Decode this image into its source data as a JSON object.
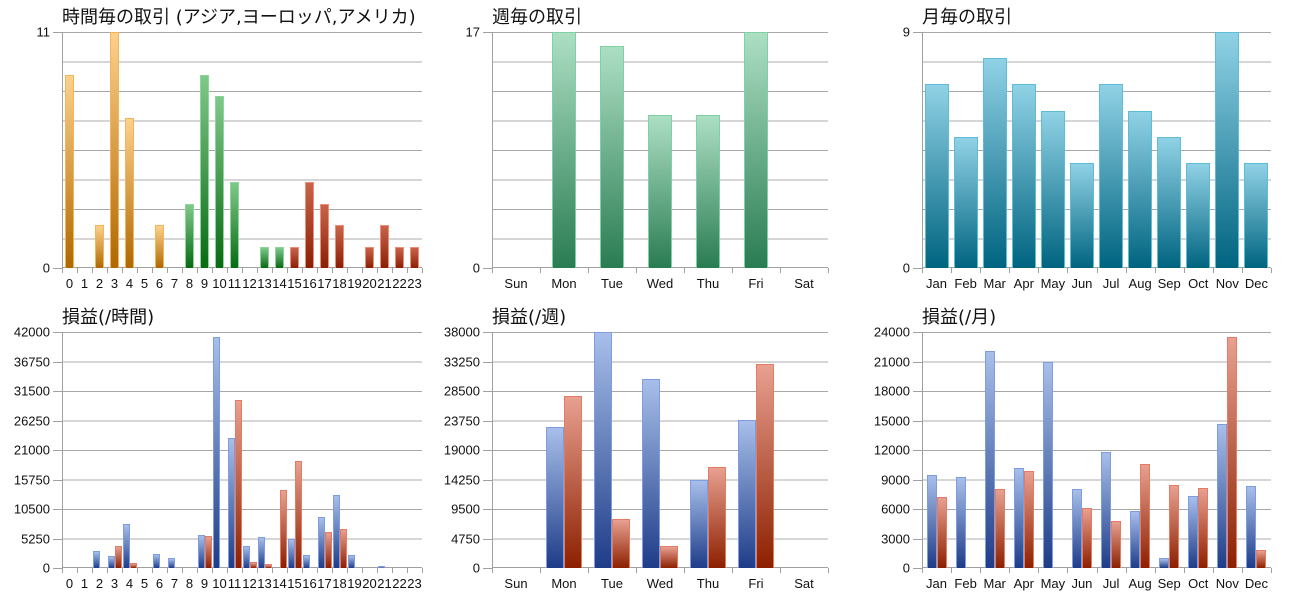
{
  "chart_data": [
    {
      "id": "hourly_trades",
      "type": "bar",
      "title": "時間毎の取引 (アジア,ヨーロッパ,アメリカ)",
      "xlabel": "",
      "ylabel": "",
      "ylim": [
        0,
        11
      ],
      "ytick_labels": [
        "0",
        "11"
      ],
      "categories": [
        "0",
        "1",
        "2",
        "3",
        "4",
        "5",
        "6",
        "7",
        "8",
        "9",
        "10",
        "11",
        "12",
        "13",
        "14",
        "15",
        "16",
        "17",
        "18",
        "19",
        "20",
        "21",
        "22",
        "23"
      ],
      "values": [
        9,
        0,
        2,
        11,
        7,
        0,
        2,
        0,
        3,
        9,
        8,
        4,
        0,
        1,
        1,
        1,
        4,
        3,
        2,
        0,
        1,
        2,
        1,
        1
      ],
      "session_colors": {
        "asia": "#e8a040",
        "europe": "#2e8b3a",
        "america": "#b03a20"
      },
      "sessions": [
        "asia",
        "asia",
        "asia",
        "asia",
        "asia",
        "asia",
        "asia",
        "asia",
        "europe",
        "europe",
        "europe",
        "europe",
        "europe",
        "europe",
        "europe",
        "america",
        "america",
        "america",
        "america",
        "america",
        "america",
        "america",
        "america",
        "america"
      ],
      "grid": true
    },
    {
      "id": "weekly_trades",
      "type": "bar",
      "title": "週毎の取引",
      "xlabel": "",
      "ylabel": "",
      "ylim": [
        0,
        17
      ],
      "ytick_labels": [
        "0",
        "17"
      ],
      "categories": [
        "Sun",
        "Mon",
        "Tue",
        "Wed",
        "Thu",
        "Fri",
        "Sat"
      ],
      "values": [
        0,
        17,
        16,
        11,
        11,
        17,
        0
      ],
      "color": "#4ea57a",
      "grid": true
    },
    {
      "id": "monthly_trades",
      "type": "bar",
      "title": "月毎の取引",
      "xlabel": "",
      "ylabel": "",
      "ylim": [
        0,
        9
      ],
      "ytick_labels": [
        "0",
        "9"
      ],
      "categories": [
        "Jan",
        "Feb",
        "Mar",
        "Apr",
        "May",
        "Jun",
        "Jul",
        "Aug",
        "Sep",
        "Oct",
        "Nov",
        "Dec"
      ],
      "values": [
        7,
        5,
        8,
        7,
        6,
        4,
        7,
        6,
        5,
        4,
        9,
        4
      ],
      "color": "#3a9ab8",
      "grid": true
    },
    {
      "id": "hourly_pl",
      "type": "bar",
      "title": "損益(/時間)",
      "xlabel": "",
      "ylabel": "",
      "ylim": [
        0,
        42000
      ],
      "ytick_labels": [
        "0",
        "5250",
        "10500",
        "15750",
        "21000",
        "26250",
        "31500",
        "36750",
        "42000"
      ],
      "categories": [
        "0",
        "1",
        "2",
        "3",
        "4",
        "5",
        "6",
        "7",
        "8",
        "9",
        "10",
        "11",
        "12",
        "13",
        "14",
        "15",
        "16",
        "17",
        "18",
        "19",
        "20",
        "21",
        "22",
        "23"
      ],
      "series": [
        {
          "name": "profit",
          "color": "#4a6cb8",
          "values": [
            0,
            0,
            3000,
            2200,
            7900,
            0,
            2500,
            1700,
            0,
            5900,
            41100,
            23200,
            3850,
            5500,
            0,
            5200,
            2250,
            9100,
            13000,
            2250,
            0,
            420,
            0,
            0
          ]
        },
        {
          "name": "loss",
          "color": "#b84a30",
          "values": [
            0,
            0,
            0,
            3850,
            900,
            0,
            0,
            0,
            0,
            5750,
            0,
            29900,
            1100,
            700,
            13900,
            19000,
            0,
            6400,
            6900,
            0,
            0,
            0,
            0,
            0
          ]
        }
      ],
      "grid": true
    },
    {
      "id": "weekly_pl",
      "type": "bar",
      "title": "損益(/週)",
      "xlabel": "",
      "ylabel": "",
      "ylim": [
        0,
        38000
      ],
      "ytick_labels": [
        "0",
        "4750",
        "9500",
        "14250",
        "19000",
        "23750",
        "28500",
        "33250",
        "38000"
      ],
      "categories": [
        "Sun",
        "Mon",
        "Tue",
        "Wed",
        "Thu",
        "Fri",
        "Sat"
      ],
      "series": [
        {
          "name": "profit",
          "color": "#4a6cb8",
          "values": [
            0,
            22650,
            37950,
            30400,
            14150,
            23900,
            0
          ]
        },
        {
          "name": "loss",
          "color": "#b84a30",
          "values": [
            0,
            27700,
            7950,
            3550,
            16250,
            32850,
            0
          ]
        }
      ],
      "grid": true
    },
    {
      "id": "monthly_pl",
      "type": "bar",
      "title": "損益(/月)",
      "xlabel": "",
      "ylabel": "",
      "ylim": [
        0,
        24000
      ],
      "ytick_labels": [
        "0",
        "3000",
        "6000",
        "9000",
        "12000",
        "15000",
        "18000",
        "21000",
        "24000"
      ],
      "categories": [
        "Jan",
        "Feb",
        "Mar",
        "Apr",
        "May",
        "Jun",
        "Jul",
        "Aug",
        "Sep",
        "Oct",
        "Nov",
        "Dec"
      ],
      "series": [
        {
          "name": "profit",
          "color": "#4a6cb8",
          "values": [
            9450,
            9300,
            22100,
            10150,
            20950,
            8000,
            11800,
            5800,
            1000,
            7300,
            14600,
            8350
          ]
        },
        {
          "name": "loss",
          "color": "#b84a30",
          "values": [
            7200,
            0,
            8050,
            9850,
            0,
            6100,
            4750,
            10600,
            8450,
            8150,
            23450,
            1800
          ]
        }
      ],
      "grid": true
    }
  ]
}
